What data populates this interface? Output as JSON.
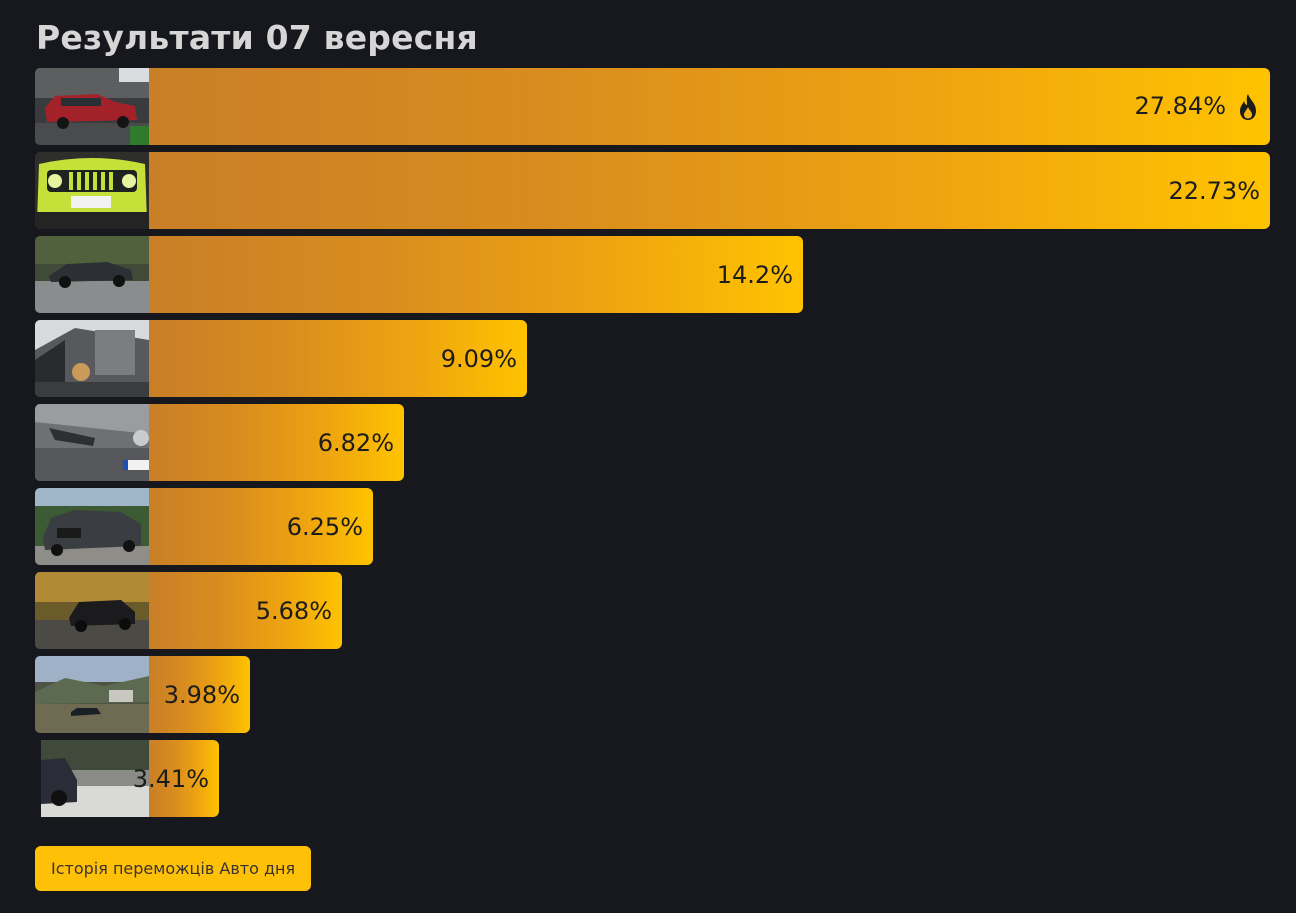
{
  "page": {
    "title": "Результати 07 вересня"
  },
  "results": [
    {
      "percent": 27.84,
      "label": "27.84%",
      "leader": true,
      "icon": "flame-icon"
    },
    {
      "percent": 22.73,
      "label": "22.73%"
    },
    {
      "percent": 14.2,
      "label": "14.2%"
    },
    {
      "percent": 9.09,
      "label": "9.09%"
    },
    {
      "percent": 6.82,
      "label": "6.82%"
    },
    {
      "percent": 6.25,
      "label": "6.25%"
    },
    {
      "percent": 5.68,
      "label": "5.68%"
    },
    {
      "percent": 3.98,
      "label": "3.98%"
    },
    {
      "percent": 3.41,
      "label": "3.41%"
    }
  ],
  "footer": {
    "history_button_label": "Історія переможців Авто дня"
  },
  "colors": {
    "background": "#17181d",
    "bar_start": "#c87f27",
    "bar_end": "#ffc300",
    "button": "#ffc107"
  }
}
